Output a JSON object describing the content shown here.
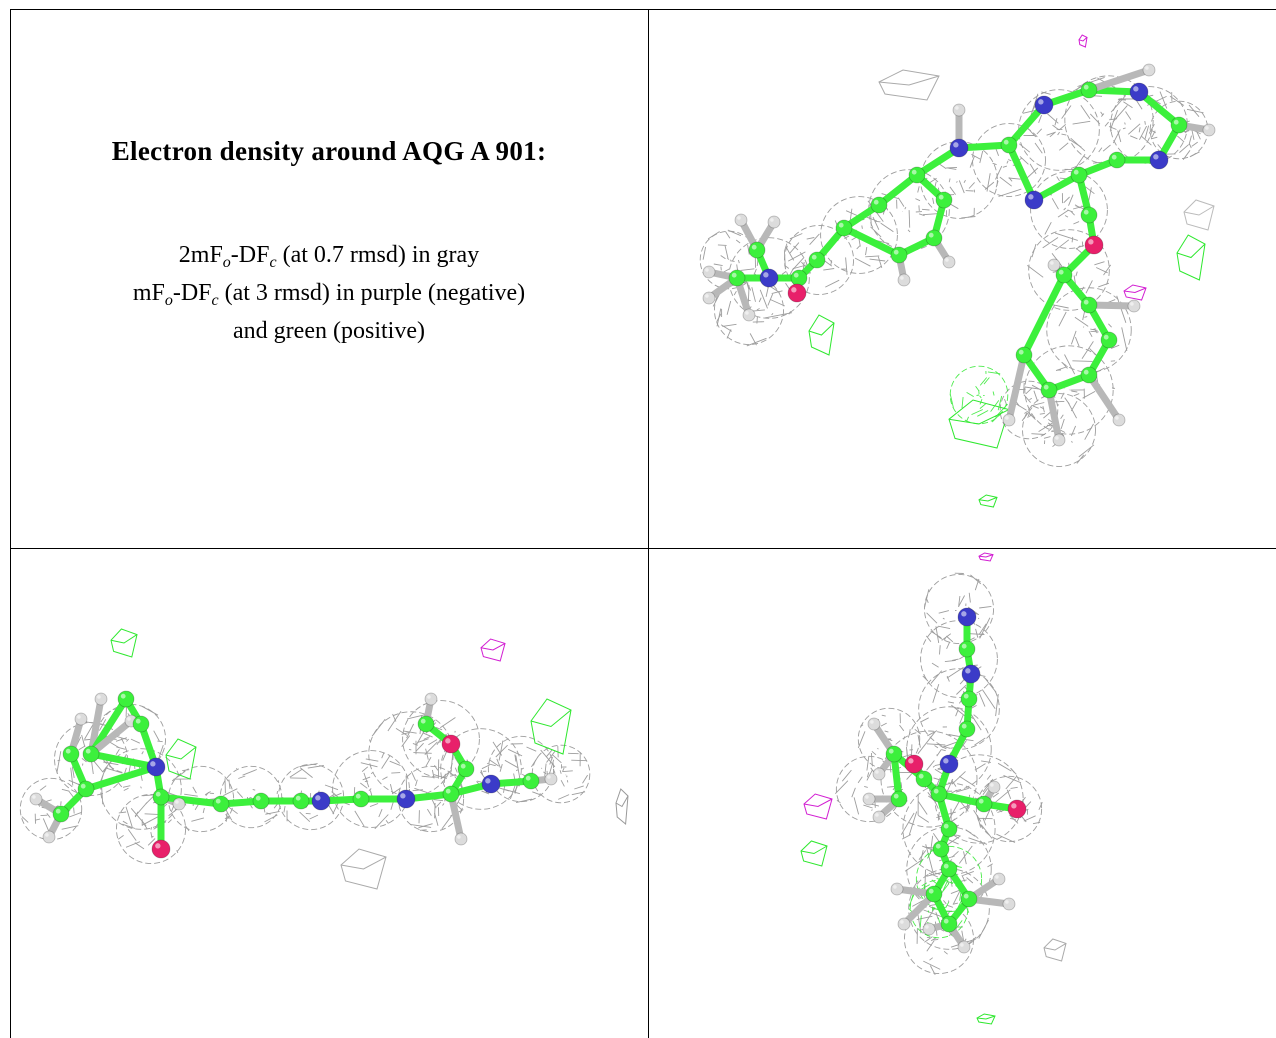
{
  "caption": {
    "title": "Electron density around AQG A 901:",
    "line1": {
      "a": "2mF",
      "s1": "o",
      "b": "-DF",
      "s2": "c",
      "c": " (at 0.7 rmsd) in gray"
    },
    "line2": {
      "a": "mF",
      "s1": "o",
      "b": "-DF",
      "s2": "c",
      "c": " (at 3 rmsd) in purple (negative)"
    },
    "line3": "and green (positive)"
  },
  "colors": {
    "carbon": "#3cf03c",
    "nitrogen": "#3b3bc8",
    "oxygen": "#e8206a",
    "hydrogen": "#dcdcdc",
    "mesh_2fofc": "#8c8c8c",
    "mesh_positive": "#2ee82e",
    "mesh_negative": "#d21ed2"
  },
  "views": [
    {
      "name": "view-top"
    },
    {
      "name": "view-side"
    },
    {
      "name": "view-end"
    }
  ]
}
